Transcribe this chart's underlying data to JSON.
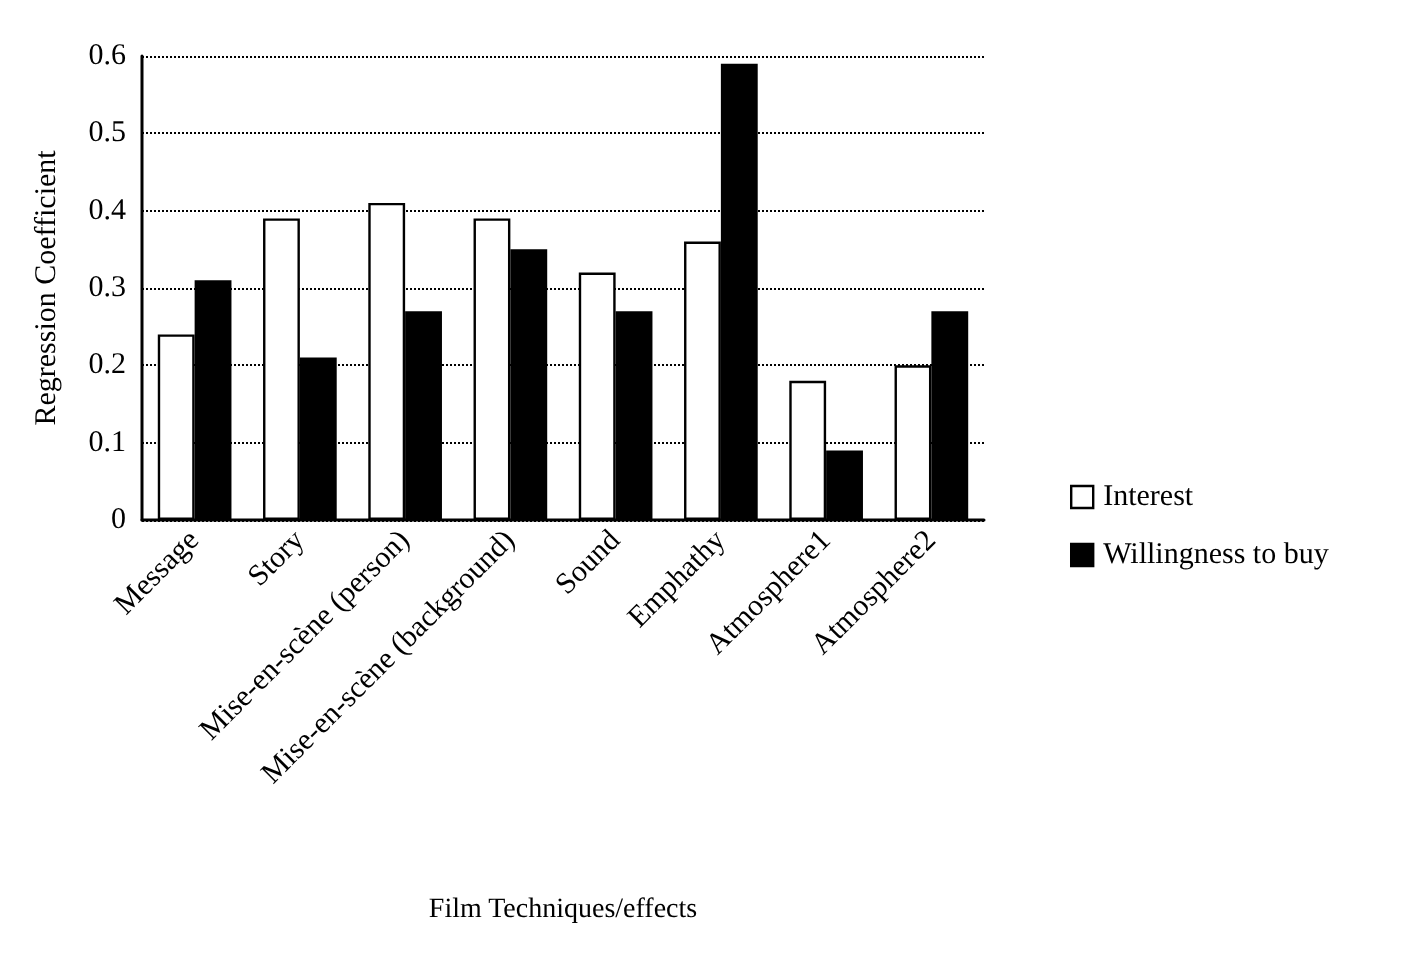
{
  "chart_data": {
    "type": "bar",
    "xlabel": "Film Techniques/effects",
    "ylabel": "Regression Coefficient",
    "categories": [
      "Message",
      "Story",
      "Mise-en-scène (person)",
      "Mise-en-scène (background)",
      "Sound",
      "Emphathy",
      "Atmosphere1",
      "Atmosphere2"
    ],
    "series": [
      {
        "name": "Interest",
        "color": "#ffffff",
        "values": [
          0.24,
          0.39,
          0.41,
          0.39,
          0.32,
          0.36,
          0.18,
          0.2
        ]
      },
      {
        "name": "Willingness to buy",
        "color": "#000000",
        "values": [
          0.31,
          0.21,
          0.27,
          0.35,
          0.27,
          0.59,
          0.09,
          0.27
        ]
      }
    ],
    "ylim": [
      0,
      0.6
    ],
    "yticks": [
      0,
      0.1,
      0.2,
      0.3,
      0.4,
      0.5,
      0.6
    ],
    "grid": "y",
    "legend": "right"
  }
}
